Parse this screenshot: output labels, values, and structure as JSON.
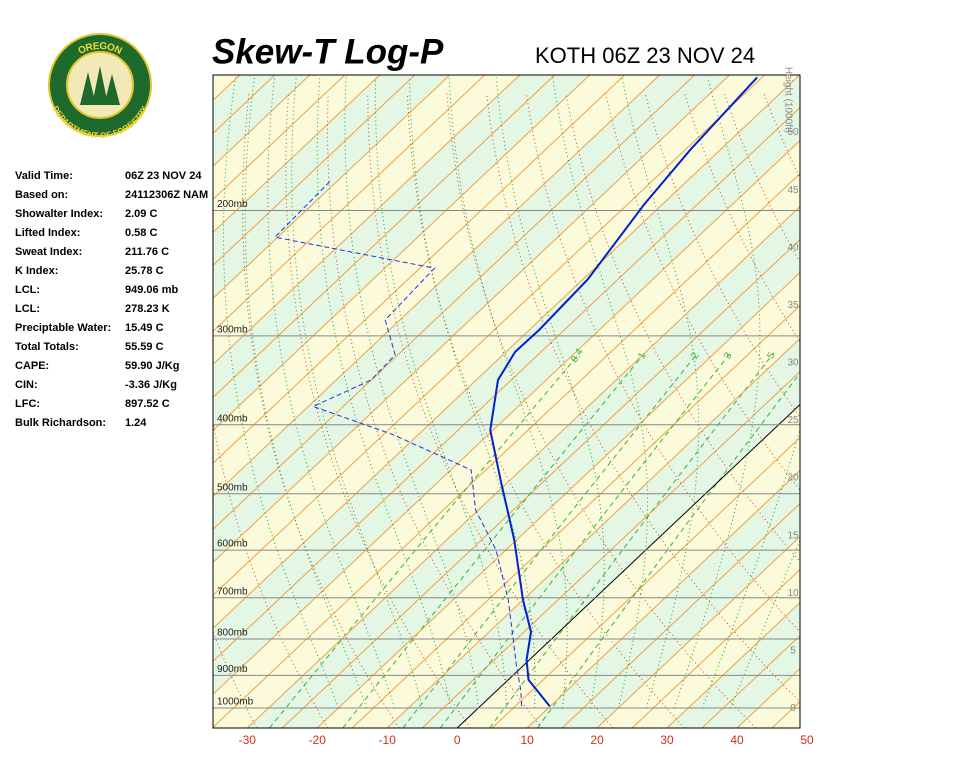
{
  "logo": {
    "top": "OREGON",
    "bottom": "DEPARTMENT OF FORESTRY"
  },
  "indices": {
    "rows": [
      [
        "Valid Time:",
        "06Z 23 NOV 24"
      ],
      [
        "Based on:",
        "24112306Z NAM"
      ],
      [
        "Showalter Index:",
        "2.09 C"
      ],
      [
        "Lifted Index:",
        "0.58 C"
      ],
      [
        "Sweat Index:",
        "211.76 C"
      ],
      [
        "K Index:",
        "25.78 C"
      ],
      [
        "LCL:",
        "949.06 mb"
      ],
      [
        "LCL:",
        "278.23 K"
      ],
      [
        "Preciptable Water:",
        "15.49 C"
      ],
      [
        "Total Totals:",
        "55.59 C"
      ],
      [
        "CAPE:",
        "59.90 J/Kg"
      ],
      [
        "CIN:",
        "-3.36 J/Kg"
      ],
      [
        "LFC:",
        "897.52 C"
      ],
      [
        "Bulk Richardson:",
        "1.24"
      ]
    ]
  },
  "chart_data": {
    "type": "skew-t",
    "title": "Skew-T Log-P",
    "subtitle": "KOTH 06Z 23 NOV 24",
    "y2_label": "Height (1000ft)",
    "log_y": true,
    "xlim": [
      -34.9,
      49
    ],
    "xticks": [
      -30,
      -20,
      -10,
      0,
      10,
      20,
      30,
      40,
      50
    ],
    "ylim": [
      1067,
      129
    ],
    "yticks": [
      {
        "value": 1000,
        "label": "1000mb"
      },
      {
        "value": 900,
        "label": "900mb"
      },
      {
        "value": 800,
        "label": "800mb"
      },
      {
        "value": 700,
        "label": "700mb"
      },
      {
        "value": 600,
        "label": "600mb"
      },
      {
        "value": 500,
        "label": "500mb"
      },
      {
        "value": 400,
        "label": "400mb"
      },
      {
        "value": 300,
        "label": "300mb"
      },
      {
        "value": 200,
        "label": "200mb"
      }
    ],
    "y2lim": [
      -1.7,
      55
    ],
    "y2ticks": [
      0,
      5,
      10,
      15,
      20,
      25,
      30,
      35,
      40,
      45,
      50
    ],
    "mixing_ratio_lines": [
      {
        "value": 0.4,
        "label": "0.4"
      },
      1,
      2,
      3,
      5,
      8
    ],
    "series": [
      {
        "color": "#0022cc",
        "style": "solid",
        "pressure": [
          994,
          913,
          856,
          782,
          705,
          581,
          478,
          407,
          346,
          316,
          294,
          250,
          196,
          164,
          130
        ],
        "values": [
          9.9,
          2.9,
          -0.4,
          -4,
          -10,
          -20.3,
          -31.4,
          -40.4,
          -46.9,
          -48.7,
          -48.6,
          -49.3,
          -52.6,
          -54.3,
          -55.7
        ]
      },
      {
        "color": "#2233dd",
        "style": "dashed",
        "pressure": [
          994,
          943,
          870,
          705,
          600,
          527,
          463,
          413,
          377,
          346,
          319,
          285,
          241,
          218,
          182
        ],
        "values": [
          5.9,
          3.3,
          -1.1,
          -12.1,
          -21.4,
          -30.4,
          -37.1,
          -53.6,
          -69.3,
          -65,
          -65.4,
          -72.1,
          -72.9,
          -100.4,
          -101
        ]
      }
    ]
  }
}
